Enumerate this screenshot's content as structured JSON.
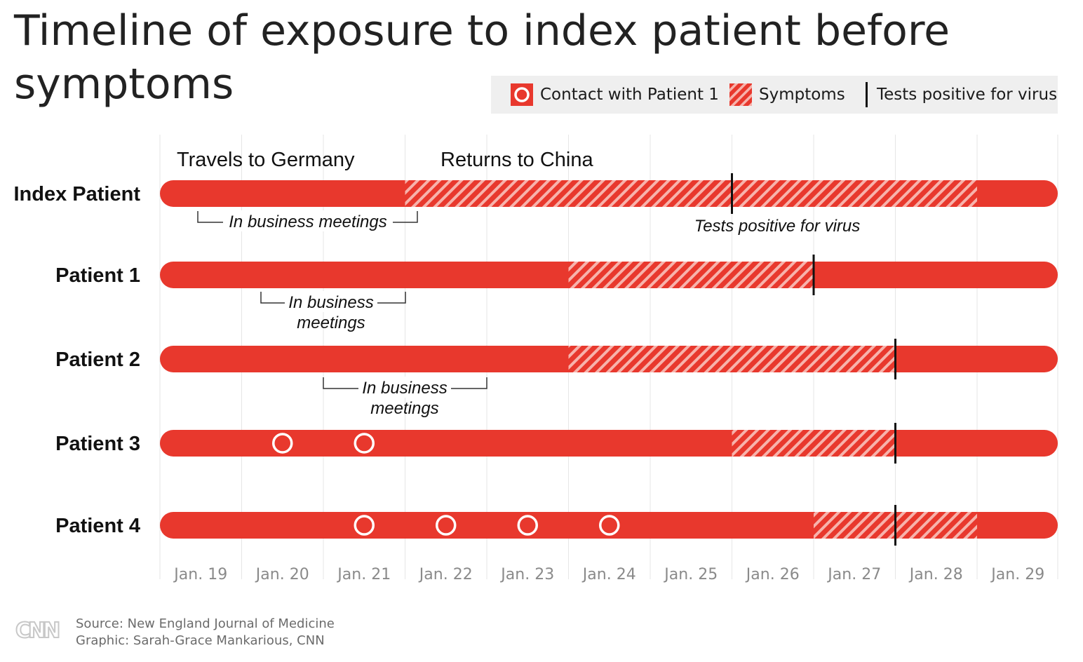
{
  "chart_data": {
    "type": "timeline",
    "title": "Timeline of exposure to index patient before symptoms",
    "x_ticks": [
      "Jan. 19",
      "Jan. 20",
      "Jan. 21",
      "Jan. 22",
      "Jan. 23",
      "Jan. 24",
      "Jan. 25",
      "Jan. 26",
      "Jan. 27",
      "Jan. 28",
      "Jan. 29"
    ],
    "x_range": [
      "Jan. 19",
      "Jan. 29"
    ],
    "grid": true,
    "legend": {
      "position": "top-right",
      "items": [
        {
          "key": "contact",
          "label": "Contact with Patient 1"
        },
        {
          "key": "symptoms",
          "label": "Symptoms"
        },
        {
          "key": "positive",
          "label": "Tests positive for virus"
        }
      ]
    },
    "rows": [
      {
        "label": "Index Patient",
        "symptoms": [
          "2020-01-22",
          "2020-01-29"
        ],
        "positive": "2020-01-26",
        "contacts": [],
        "annotations": [
          {
            "text": "Travels to Germany",
            "at": "2020-01-19"
          },
          {
            "text": "Returns to China",
            "at": "2020-01-22"
          }
        ],
        "meetings": {
          "text": "In business meetings",
          "range": [
            "2020-01-19",
            "2020-01-22"
          ]
        },
        "positive_label": "Tests positive for virus"
      },
      {
        "label": "Patient 1",
        "symptoms": [
          "2020-01-24",
          "2020-01-27"
        ],
        "positive": "2020-01-27",
        "contacts": [],
        "meetings": {
          "text": "In business meetings",
          "line1": "In business",
          "line2": "meetings",
          "range": [
            "2020-01-20",
            "2020-01-21"
          ]
        }
      },
      {
        "label": "Patient 2",
        "symptoms": [
          "2020-01-24",
          "2020-01-28"
        ],
        "positive": "2020-01-28",
        "contacts": [],
        "meetings": {
          "text": "In business meetings",
          "line1": "In business",
          "line2": "meetings",
          "range": [
            "2020-01-21",
            "2020-01-22"
          ]
        }
      },
      {
        "label": "Patient 3",
        "symptoms": [
          "2020-01-26",
          "2020-01-28"
        ],
        "positive": "2020-01-28",
        "contacts": [
          "2020-01-20",
          "2020-01-21"
        ]
      },
      {
        "label": "Patient 4",
        "symptoms": [
          "2020-01-27",
          "2020-01-29"
        ],
        "positive": "2020-01-28",
        "contacts": [
          "2020-01-21",
          "2020-01-22",
          "2020-01-23",
          "2020-01-24"
        ]
      }
    ],
    "colors": {
      "bar": "#e8382d",
      "stripe": "#f7b3ac",
      "grid": "#e6e6e6",
      "tick": "#8a8a8a",
      "marker": "#111111"
    }
  },
  "footer": {
    "source": "Source: New England Journal of Medicine",
    "credit": "Graphic: Sarah-Grace Mankarious, CNN",
    "logo": "CNN"
  }
}
